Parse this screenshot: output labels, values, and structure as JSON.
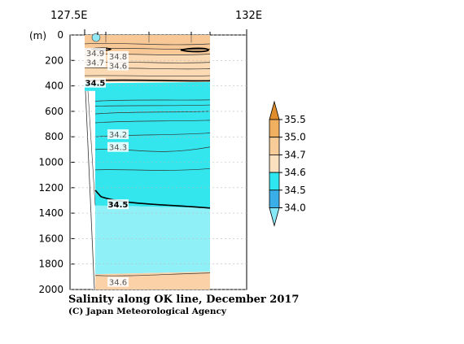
{
  "chart_data": {
    "type": "heatmap",
    "title": "Salinity along OK line, December 2017",
    "credit": "(C) Japan Meteorological Agency",
    "y_unit_label": "(m)",
    "x_top_labels": [
      "127.5E",
      "132E"
    ],
    "ylim": [
      0,
      2000
    ],
    "yticks": [
      "0",
      "200",
      "400",
      "600",
      "800",
      "1000",
      "1200",
      "1400",
      "1600",
      "1800",
      "2000"
    ],
    "contour_labels": [
      {
        "text": "34.9",
        "depth": 140,
        "bold": false
      },
      {
        "text": "34.8",
        "depth": 165,
        "bold": false
      },
      {
        "text": "34.7",
        "depth": 215,
        "bold": false
      },
      {
        "text": "34.6",
        "depth": 240,
        "bold": false
      },
      {
        "text": "34.5",
        "depth": 375,
        "bold": true
      },
      {
        "text": "34.2",
        "depth": 780,
        "bold": false
      },
      {
        "text": "34.3",
        "depth": 880,
        "bold": false
      },
      {
        "text": "34.5",
        "depth": 1330,
        "bold": true
      },
      {
        "text": "34.6",
        "depth": 1940,
        "bold": false
      }
    ],
    "legend": {
      "levels": [
        "35.5",
        "35.0",
        "34.7",
        "34.6",
        "34.5",
        "34.0"
      ],
      "colors": [
        "#e08d2d",
        "#f0b060",
        "#f8cc98",
        "#fbe0c0",
        "#2ee6f0",
        "#3aaee8",
        "#88e8f8"
      ]
    },
    "band_colors": {
      "surface_orange": "#f8c896",
      "light_orange": "#fbd9b2",
      "cyan": "#33e6ee",
      "light_cyan": "#90f0f8",
      "deep_peach": "#fbd2a8"
    }
  }
}
